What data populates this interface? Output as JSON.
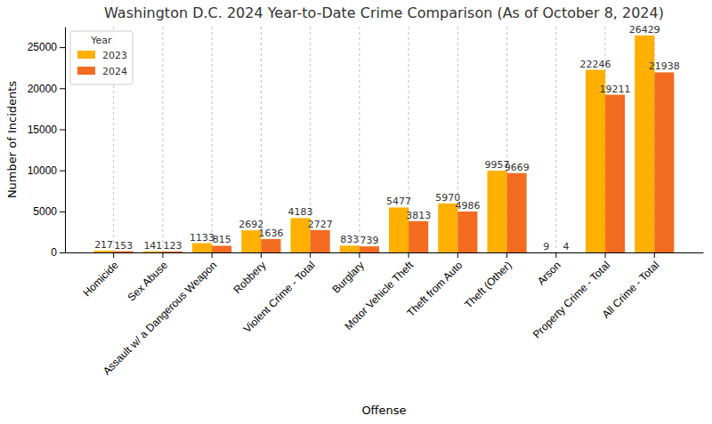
{
  "chart_data": {
    "type": "bar",
    "title": "Washington D.C. 2024 Year-to-Date Crime Comparison (As of October 8, 2024)",
    "x_label": "Offense",
    "y_label": "Number of Incidents",
    "legend_title": "Year",
    "legend": "upper left",
    "grid": "x",
    "data_labels": true,
    "categories": [
      "Homicide",
      "Sex Abuse",
      "Assault w/ a Dangerous Weapon",
      "Robbery",
      "Violent Crime - Total",
      "Burglary",
      "Motor Vehicle Theft",
      "Theft from Auto",
      "Theft (Other)",
      "Arson",
      "Property Crime - Total",
      "All Crime - Total"
    ],
    "series": [
      {
        "name": "2023",
        "color": "#ffb000",
        "values": [
          217,
          141,
          1133,
          2692,
          4183,
          833,
          5477,
          5970,
          9957,
          9,
          22246,
          26429
        ]
      },
      {
        "name": "2024",
        "color": "#f36c21",
        "values": [
          153,
          123,
          815,
          1636,
          2727,
          739,
          3813,
          4986,
          9669,
          4,
          19211,
          21938
        ]
      }
    ],
    "ylim": [
      0,
      27500
    ],
    "yticks": [
      0,
      5000,
      10000,
      15000,
      20000,
      25000
    ]
  }
}
